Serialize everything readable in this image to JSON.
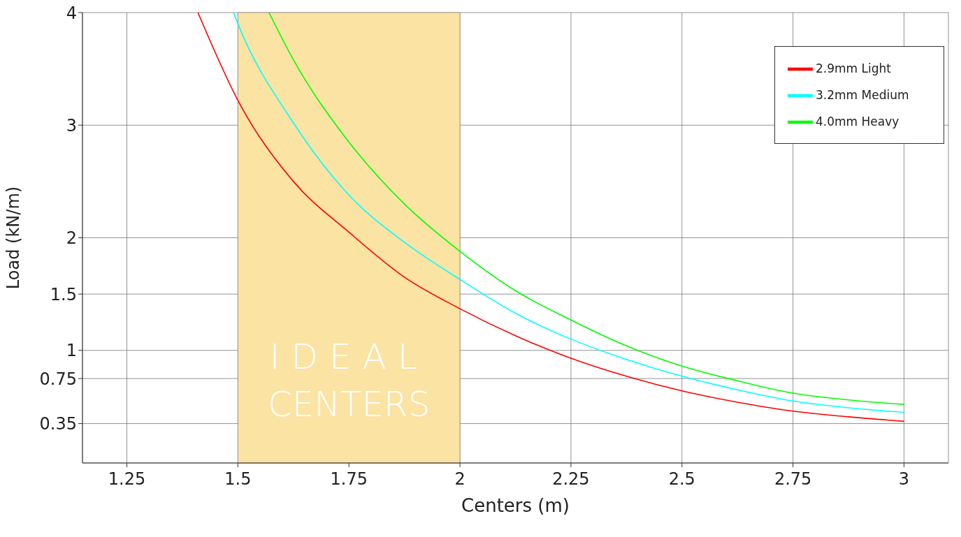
{
  "chart_data": {
    "type": "line",
    "xlabel": "Centers (m)",
    "ylabel": "Load (kN/m)",
    "xlim": [
      1.15,
      3.1
    ],
    "xticks": [
      1.25,
      1.5,
      1.75,
      2,
      2.25,
      2.5,
      2.75,
      3
    ],
    "ylim": [
      0,
      4
    ],
    "yticks": [
      0.35,
      0.75,
      1,
      1.5,
      2,
      3,
      4
    ],
    "grid": true,
    "legend": "top right",
    "marker": "none",
    "line_style": "solid",
    "bands": [
      {
        "axis": "x",
        "from": 1.5,
        "to": 2,
        "label": "IDEAL\nCENTERS",
        "color": "#fbe3a4"
      }
    ],
    "series": [
      {
        "name": "2.9mm Light",
        "color": "#ff0000",
        "x": [
          1.41,
          1.5,
          1.625,
          1.75,
          1.875,
          2,
          2.125,
          2.25,
          2.375,
          2.5,
          2.625,
          2.75,
          2.875,
          3
        ],
        "values": [
          4,
          3.22,
          2.5,
          2.05,
          1.65,
          1.37,
          1.13,
          0.93,
          0.77,
          0.64,
          0.54,
          0.46,
          0.41,
          0.37
        ]
      },
      {
        "name": "3.2mm Medium",
        "color": "#00ffff",
        "x": [
          1.49,
          1.5,
          1.625,
          1.75,
          1.875,
          2,
          2.125,
          2.25,
          2.375,
          2.5,
          2.625,
          2.75,
          2.875,
          3
        ],
        "values": [
          4,
          3.9,
          3.02,
          2.38,
          1.96,
          1.63,
          1.33,
          1.1,
          0.92,
          0.77,
          0.65,
          0.55,
          0.49,
          0.45
        ]
      },
      {
        "name": "4.0mm Heavy",
        "color": "#00ff00",
        "x": [
          1.57,
          1.625,
          1.75,
          1.875,
          2,
          2.125,
          2.25,
          2.375,
          2.5,
          2.625,
          2.75,
          2.875,
          3
        ],
        "values": [
          4,
          3.58,
          2.85,
          2.3,
          1.88,
          1.53,
          1.27,
          1.04,
          0.86,
          0.73,
          0.62,
          0.56,
          0.52
        ]
      }
    ]
  }
}
